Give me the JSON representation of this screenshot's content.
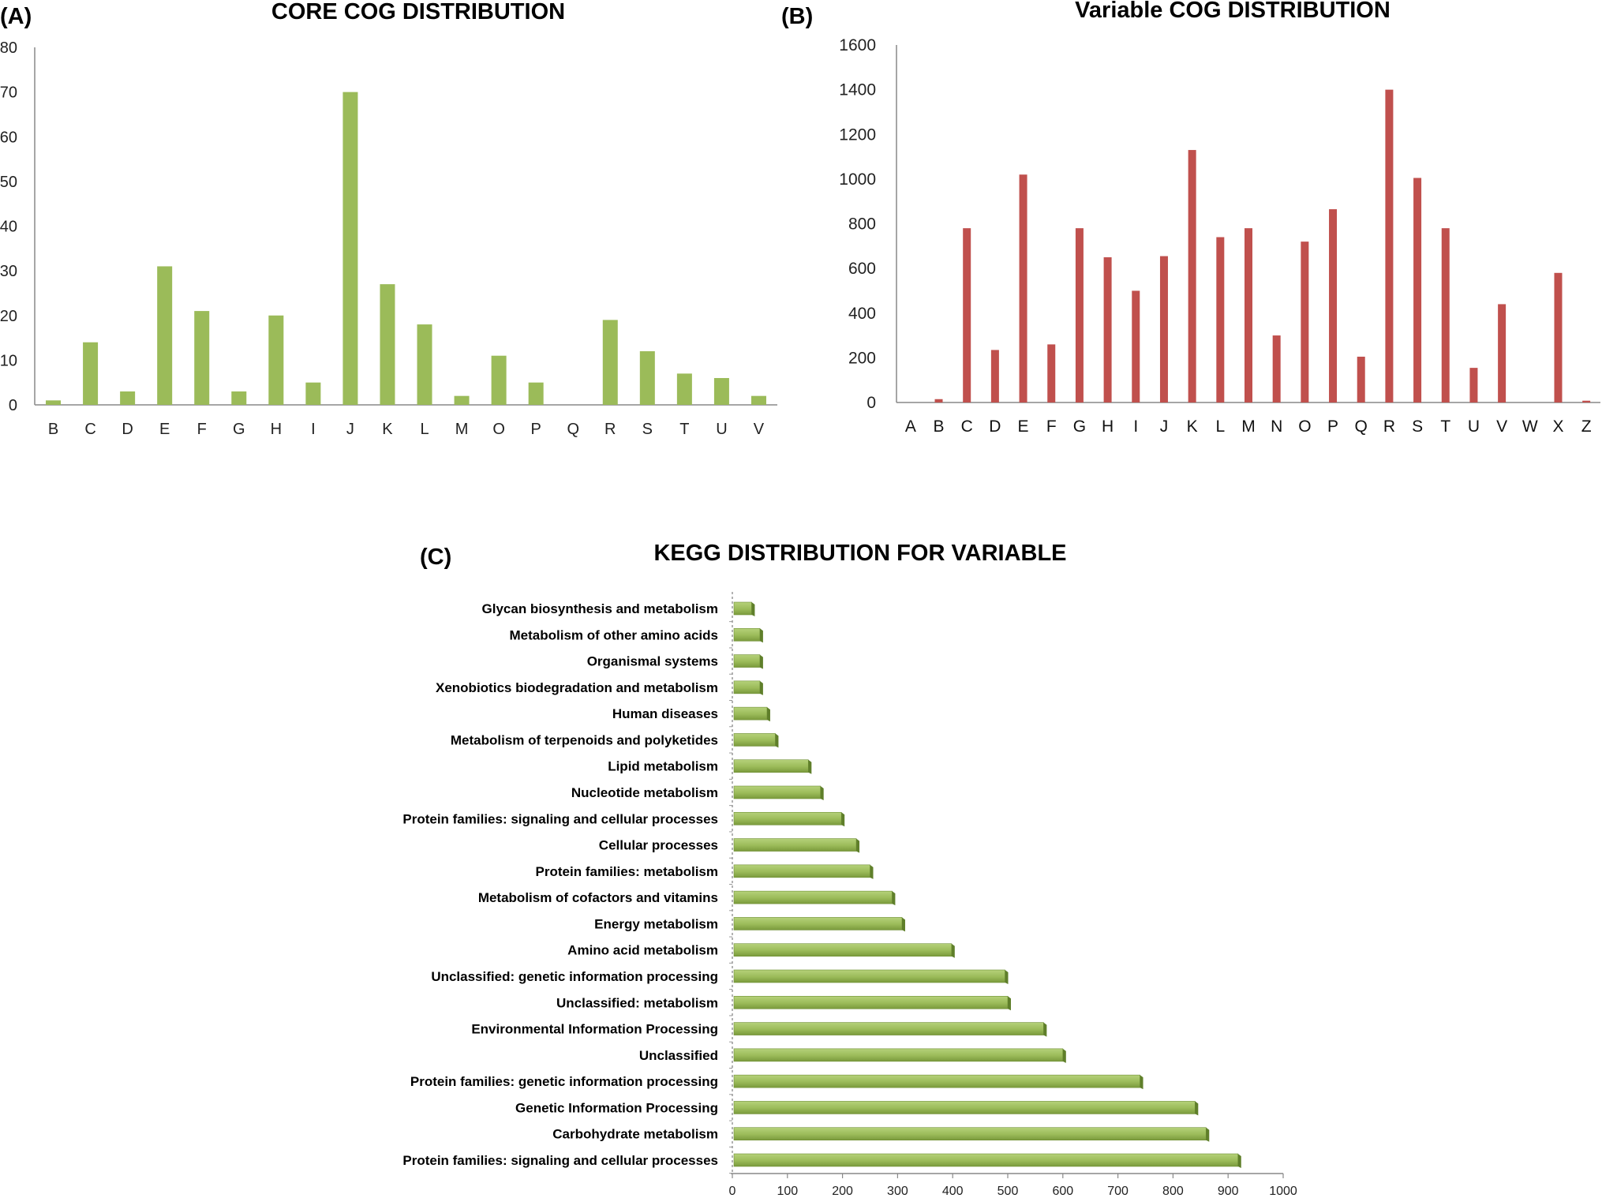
{
  "chart_data": [
    {
      "panel": "(A)",
      "type": "bar",
      "title": "CORE COG DISTRIBUTION",
      "xlabel": "",
      "ylabel": "",
      "ylim": [
        0,
        80
      ],
      "yticks": [
        "0",
        "10",
        "20",
        "30",
        "40",
        "50",
        "60",
        "70",
        "80"
      ],
      "categories": [
        "B",
        "C",
        "D",
        "E",
        "F",
        "G",
        "H",
        "I",
        "J",
        "K",
        "L",
        "M",
        "O",
        "P",
        "Q",
        "R",
        "S",
        "T",
        "U",
        "V"
      ],
      "values": [
        1,
        14,
        3,
        31,
        21,
        3,
        20,
        5,
        70,
        27,
        18,
        2,
        11,
        5,
        0,
        19,
        12,
        7,
        6,
        2
      ],
      "color": "#9bbb59"
    },
    {
      "panel": "(B)",
      "type": "bar",
      "title": "Variable COG DISTRIBUTION",
      "xlabel": "",
      "ylabel": "",
      "ylim": [
        0,
        1600
      ],
      "yticks": [
        "0",
        "200",
        "400",
        "600",
        "800",
        "1000",
        "1200",
        "1400",
        "1600"
      ],
      "categories": [
        "A",
        "B",
        "C",
        "D",
        "E",
        "F",
        "G",
        "H",
        "I",
        "J",
        "K",
        "L",
        "M",
        "N",
        "O",
        "P",
        "Q",
        "R",
        "S",
        "T",
        "U",
        "V",
        "W",
        "X",
        "Z"
      ],
      "values": [
        0,
        15,
        780,
        235,
        1020,
        260,
        780,
        650,
        500,
        655,
        1130,
        740,
        780,
        300,
        720,
        865,
        205,
        1400,
        1005,
        780,
        155,
        440,
        0,
        580,
        8
      ],
      "color": "#c0504d"
    },
    {
      "panel": "(C)",
      "type": "bar",
      "orientation": "horizontal",
      "title": "KEGG DISTRIBUTION  FOR VARIABLE",
      "xlabel": "",
      "ylabel": "",
      "xlim": [
        0,
        1000
      ],
      "xticks": [
        "0",
        "100",
        "200",
        "300",
        "400",
        "500",
        "600",
        "700",
        "800",
        "900",
        "1000"
      ],
      "categories": [
        "Glycan biosynthesis and metabolism",
        "Metabolism of other amino acids",
        "Organismal systems",
        "Xenobiotics biodegradation and metabolism",
        "Human diseases",
        "Metabolism of terpenoids and polyketides",
        "Lipid metabolism",
        "Nucleotide metabolism",
        "Protein families: signaling and cellular processes",
        "Cellular processes",
        "Protein families: metabolism",
        "Metabolism of cofactors and vitamins",
        "Energy metabolism",
        "Amino acid metabolism",
        "Unclassified: genetic information processing",
        "Unclassified: metabolism",
        "Environmental Information Processing",
        "Unclassified",
        "Protein families: genetic information processing",
        "Genetic Information Processing",
        "Carbohydrate metabolism",
        "Protein families: signaling and cellular processes"
      ],
      "values": [
        35,
        50,
        50,
        50,
        63,
        78,
        138,
        160,
        198,
        225,
        250,
        290,
        308,
        398,
        495,
        500,
        565,
        600,
        740,
        840,
        860,
        918
      ],
      "color": "#9bbb59"
    }
  ]
}
